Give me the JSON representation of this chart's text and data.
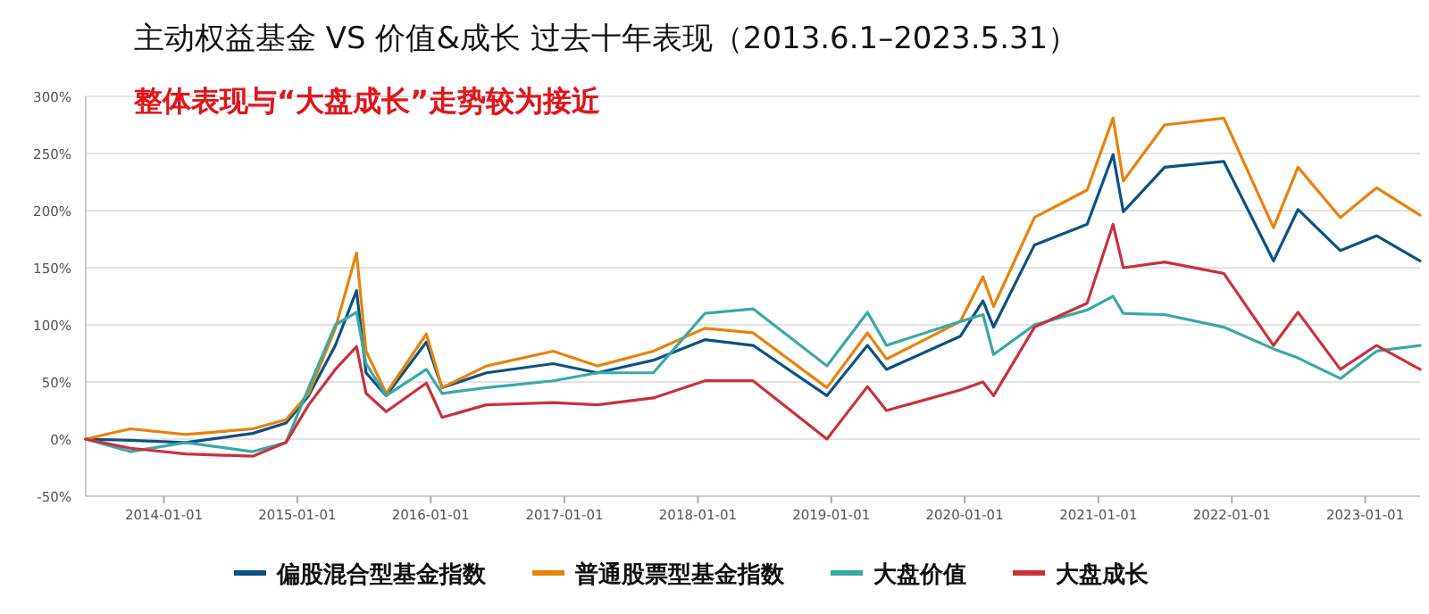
{
  "chart_data": {
    "type": "line",
    "title": "主动权益基金 VS 价值&成长  过去十年表现（2013.6.1–2023.5.31）",
    "subtitle": "整体表现与“大盘成长”走势较为接近",
    "x": [
      "2013-06-01",
      "2013-10-01",
      "2014-03-01",
      "2014-09-01",
      "2014-12-01",
      "2015-02-01",
      "2015-04-15",
      "2015-06-12",
      "2015-07-08",
      "2015-09-01",
      "2015-12-20",
      "2016-02-01",
      "2016-06-01",
      "2016-12-01",
      "2017-04-01",
      "2017-09-01",
      "2018-01-20",
      "2018-06-01",
      "2018-12-20",
      "2019-04-10",
      "2019-06-01",
      "2019-12-20",
      "2020-02-20",
      "2020-03-20",
      "2020-07-10",
      "2020-12-01",
      "2021-02-10",
      "2021-03-10",
      "2021-07-01",
      "2021-12-10",
      "2022-04-25",
      "2022-07-01",
      "2022-10-25",
      "2023-02-01",
      "2023-05-31"
    ],
    "series": [
      {
        "name": "偏股混合型基金指数",
        "color": "#0b5283",
        "values": [
          0,
          -1,
          -3,
          5,
          14,
          38,
          82,
          130,
          58,
          38,
          85,
          45,
          58,
          66,
          58,
          69,
          87,
          82,
          38,
          82,
          61,
          90,
          121,
          98,
          170,
          188,
          249,
          199,
          238,
          243,
          156,
          201,
          165,
          178,
          156
        ]
      },
      {
        "name": "普通股票型基金指数",
        "color": "#e8820c",
        "values": [
          0,
          9,
          4,
          9,
          17,
          40,
          97,
          163,
          77,
          40,
          92,
          45,
          64,
          77,
          64,
          77,
          97,
          93,
          45,
          93,
          70,
          103,
          142,
          116,
          194,
          218,
          281,
          226,
          275,
          281,
          185,
          238,
          194,
          220,
          196
        ]
      },
      {
        "name": "大盘价值",
        "color": "#3aa8a8",
        "values": [
          0,
          -11,
          -3,
          -11,
          -3,
          45,
          100,
          111,
          66,
          38,
          61,
          40,
          45,
          51,
          58,
          58,
          110,
          114,
          64,
          111,
          82,
          103,
          109,
          74,
          100,
          113,
          125,
          110,
          109,
          98,
          79,
          71,
          53,
          77,
          82
        ]
      },
      {
        "name": "大盘成长",
        "color": "#c8323c",
        "values": [
          0,
          -8,
          -13,
          -15,
          -3,
          30,
          61,
          81,
          40,
          24,
          49,
          19,
          30,
          32,
          30,
          36,
          51,
          51,
          0,
          46,
          25,
          43,
          50,
          38,
          98,
          119,
          188,
          150,
          155,
          145,
          82,
          111,
          61,
          82,
          61
        ]
      }
    ],
    "xlim": [
      "2013-06-01",
      "2023-05-31"
    ],
    "xticks": [
      "2014-01-01",
      "2015-01-01",
      "2016-01-01",
      "2017-01-01",
      "2018-01-01",
      "2019-01-01",
      "2020-01-01",
      "2021-01-01",
      "2022-01-01",
      "2023-01-01"
    ],
    "ylim": [
      -50,
      300
    ],
    "yticks": [
      {
        "value": -50,
        "label": "-50%"
      },
      {
        "value": 0,
        "label": "0%"
      },
      {
        "value": 50,
        "label": "50%"
      },
      {
        "value": 100,
        "label": "100%"
      },
      {
        "value": 150,
        "label": "150%"
      },
      {
        "value": 200,
        "label": "200%"
      },
      {
        "value": 250,
        "label": "250%"
      },
      {
        "value": 300,
        "label": "300%"
      }
    ],
    "grid": "y",
    "legend": "bottom",
    "line_style": "solid"
  }
}
